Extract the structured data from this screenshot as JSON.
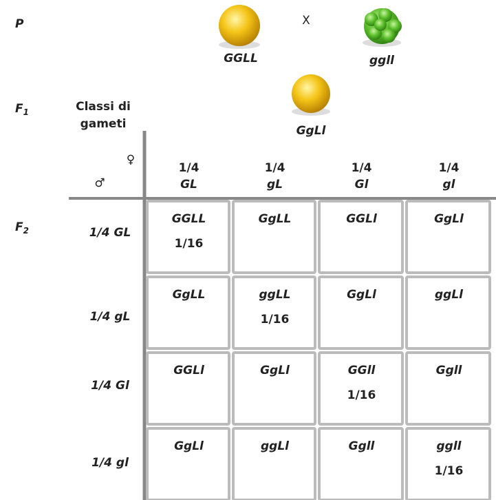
{
  "generations": [
    {
      "label": "P"
    },
    {
      "label": "F",
      "sub": "1"
    },
    {
      "label": "F",
      "sub": "2"
    }
  ],
  "parents": [
    "GGLL",
    "ggll"
  ],
  "cross": "X",
  "f1": "GgLl",
  "gamete_header": [
    "Classi di",
    "gameti"
  ],
  "female": "♀",
  "male": "♂",
  "columns": [
    {
      "fraction": "1/4",
      "gamete": "GL"
    },
    {
      "fraction": "1/4",
      "gamete": "gL"
    },
    {
      "fraction": "1/4",
      "gamete": "Gl"
    },
    {
      "fraction": "1/4",
      "gamete": "gl"
    }
  ],
  "rows": [
    {
      "label": "1/4 GL",
      "cells": [
        {
          "genotype": "GGLL",
          "fraction": "1/16"
        },
        {
          "genotype": "GgLL"
        },
        {
          "genotype": "GGLl"
        },
        {
          "genotype": "GgLl"
        }
      ]
    },
    {
      "label": "1/4 gL",
      "cells": [
        {
          "genotype": "GgLL"
        },
        {
          "genotype": "ggLL",
          "fraction": "1/16"
        },
        {
          "genotype": "GgLl"
        },
        {
          "genotype": "ggLl"
        }
      ]
    },
    {
      "label": "1/4 Gl",
      "cells": [
        {
          "genotype": "GGLl"
        },
        {
          "genotype": "GgLl"
        },
        {
          "genotype": "GGll",
          "fraction": "1/16"
        },
        {
          "genotype": "Ggll"
        }
      ]
    },
    {
      "label": "1/4 gl",
      "cells": [
        {
          "genotype": "GgLl"
        },
        {
          "genotype": "ggLl"
        },
        {
          "genotype": "Ggll"
        },
        {
          "genotype": "ggll",
          "fraction": "1/16"
        }
      ]
    }
  ]
}
